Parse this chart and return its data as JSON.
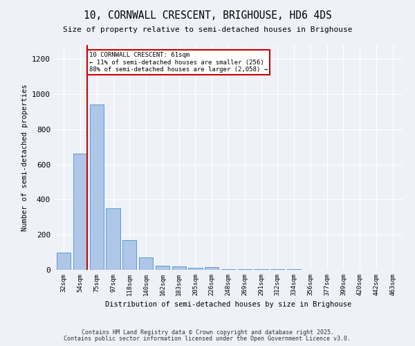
{
  "title1": "10, CORNWALL CRESCENT, BRIGHOUSE, HD6 4DS",
  "title2": "Size of property relative to semi-detached houses in Brighouse",
  "xlabel": "Distribution of semi-detached houses by size in Brighouse",
  "ylabel": "Number of semi-detached properties",
  "categories": [
    "32sqm",
    "54sqm",
    "75sqm",
    "97sqm",
    "118sqm",
    "140sqm",
    "162sqm",
    "183sqm",
    "205sqm",
    "226sqm",
    "248sqm",
    "269sqm",
    "291sqm",
    "312sqm",
    "334sqm",
    "356sqm",
    "377sqm",
    "399sqm",
    "420sqm",
    "442sqm",
    "463sqm"
  ],
  "values": [
    100,
    660,
    940,
    350,
    170,
    70,
    25,
    20,
    10,
    15,
    5,
    5,
    2,
    2,
    2,
    1,
    1,
    1,
    1,
    1,
    1
  ],
  "bar_color": "#aec6e8",
  "bar_edge_color": "#5b9bd5",
  "property_line_x": 1.42,
  "annotation_text": "10 CORNWALL CRESCENT: 61sqm\n← 11% of semi-detached houses are smaller (256)\n88% of semi-detached houses are larger (2,058) →",
  "annotation_box_color": "#ffffff",
  "annotation_box_edge": "#cc0000",
  "vline_color": "#cc0000",
  "ylim": [
    0,
    1280
  ],
  "yticks": [
    0,
    200,
    400,
    600,
    800,
    1000,
    1200
  ],
  "background_color": "#eef2f8",
  "grid_color": "#ffffff",
  "footer1": "Contains HM Land Registry data © Crown copyright and database right 2025.",
  "footer2": "Contains public sector information licensed under the Open Government Licence v3.0."
}
